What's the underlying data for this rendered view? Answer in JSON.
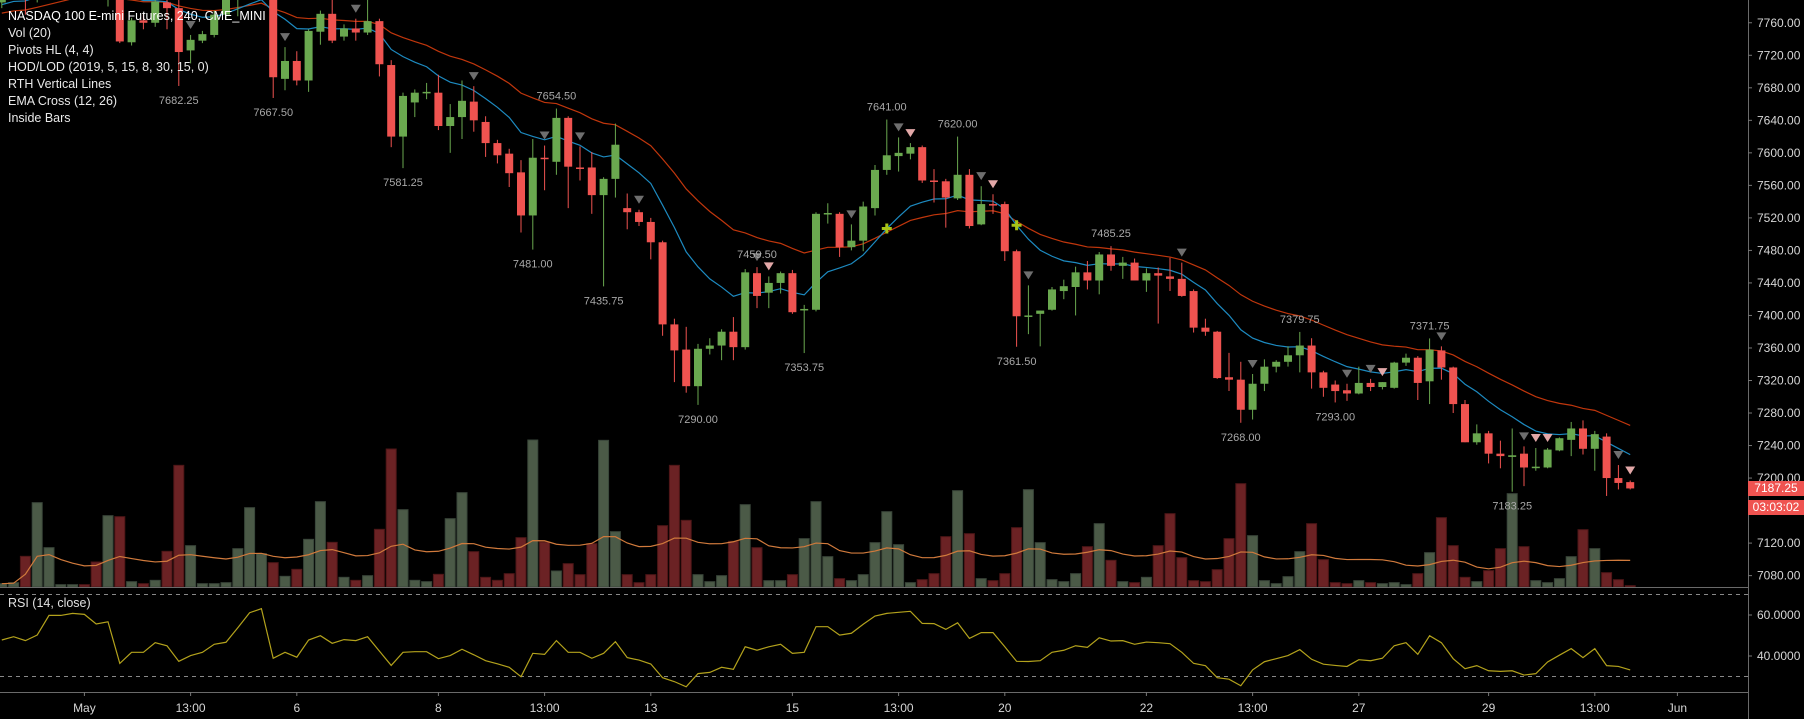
{
  "legend": {
    "title": "NASDAQ 100 E-mini Futures, 240, CME_MINI",
    "indicators": [
      "Vol (20)",
      "Pivots HL (4, 4)",
      "HOD/LOD (2019, 5, 15, 8, 30, 15, 0)",
      "RTH Vertical Lines",
      "EMA Cross (12, 26)",
      "Inside Bars"
    ]
  },
  "rsi_legend": "RSI (14, close)",
  "colors": {
    "background": "#000000",
    "up": "#6aa84f",
    "down": "#ef5350",
    "volume_up": "#4b5a47",
    "volume_down": "#6b2224",
    "ema_fast": "#1d8ac0",
    "ema_slow": "#c0360c",
    "volume_ma": "#d07a3c",
    "rsi": "#b3a21c",
    "marker_gray": "#6e6e6e",
    "marker_pink": "#e3a8a8",
    "ema_cross": "#a8c418"
  },
  "chart_data": {
    "type": "candlestick",
    "candles": [
      [
        7785,
        7800,
        7778,
        7795
      ],
      [
        7795,
        7815,
        7788,
        7808
      ],
      [
        7808,
        7812,
        7770,
        7790
      ],
      [
        7790,
        7825,
        7785,
        7820
      ],
      [
        7820,
        7832,
        7805,
        7828
      ],
      [
        7828,
        7835,
        7820,
        7830
      ],
      [
        7830,
        7838,
        7822,
        7834
      ],
      [
        7834,
        7836,
        7815,
        7825
      ],
      [
        7825,
        7828,
        7790,
        7800
      ],
      [
        7792,
        7815,
        7780,
        7810
      ],
      [
        7800,
        7805,
        7735,
        7737
      ],
      [
        7736,
        7766,
        7732,
        7763
      ],
      [
        7763,
        7770,
        7752,
        7760
      ],
      [
        7760,
        7792,
        7755,
        7786
      ],
      [
        7785,
        7795,
        7752,
        7778
      ],
      [
        7778,
        7790,
        7682.25,
        7724
      ],
      [
        7726,
        7745,
        7710,
        7739
      ],
      [
        7738,
        7750,
        7735,
        7746
      ],
      [
        7745,
        7775,
        7742,
        7770
      ],
      [
        7770,
        7800,
        7765,
        7795
      ],
      [
        7795,
        7812,
        7768,
        7808
      ],
      [
        7808,
        7820,
        7795,
        7815
      ],
      [
        7812,
        7825,
        7790,
        7818
      ],
      [
        7815,
        7818,
        7667.5,
        7693
      ],
      [
        7691,
        7730,
        7677,
        7713
      ],
      [
        7713,
        7725,
        7683,
        7689
      ],
      [
        7689,
        7752,
        7675,
        7750
      ],
      [
        7749,
        7775,
        7733,
        7771
      ],
      [
        7771,
        7790,
        7735,
        7738
      ],
      [
        7743,
        7758,
        7738,
        7753
      ],
      [
        7753,
        7765,
        7738,
        7748
      ],
      [
        7748,
        7790,
        7745,
        7762
      ],
      [
        7762,
        7765,
        7694,
        7709
      ],
      [
        7708,
        7714,
        7607,
        7620
      ],
      [
        7620,
        7674,
        7581.25,
        7670
      ],
      [
        7662,
        7678,
        7644,
        7674
      ],
      [
        7674,
        7686,
        7666,
        7675
      ],
      [
        7674,
        7696,
        7628,
        7633
      ],
      [
        7633,
        7660,
        7600,
        7644
      ],
      [
        7644,
        7689,
        7617,
        7664
      ],
      [
        7663,
        7682,
        7626,
        7640
      ],
      [
        7638,
        7645,
        7595,
        7612
      ],
      [
        7612,
        7616,
        7587,
        7597
      ],
      [
        7599,
        7605,
        7558,
        7575
      ],
      [
        7576,
        7591,
        7502,
        7523
      ],
      [
        7523,
        7617,
        7481,
        7594
      ],
      [
        7594,
        7609,
        7554,
        7593
      ],
      [
        7589,
        7654.5,
        7573,
        7643
      ],
      [
        7643,
        7645,
        7532,
        7583
      ],
      [
        7582,
        7608,
        7566,
        7581
      ],
      [
        7582,
        7601,
        7525,
        7548
      ],
      [
        7548,
        7570,
        7435.75,
        7568
      ],
      [
        7568,
        7636,
        7545,
        7610
      ],
      [
        7532,
        7550,
        7506,
        7527
      ],
      [
        7527,
        7530,
        7510,
        7515
      ],
      [
        7515,
        7520,
        7469,
        7490
      ],
      [
        7490,
        7492,
        7375,
        7389
      ],
      [
        7389,
        7396,
        7318,
        7357
      ],
      [
        7358,
        7386,
        7305,
        7313
      ],
      [
        7313,
        7365,
        7290,
        7359
      ],
      [
        7359,
        7372,
        7352,
        7363
      ],
      [
        7363,
        7383,
        7345,
        7380
      ],
      [
        7380,
        7398,
        7345,
        7361
      ],
      [
        7361,
        7457,
        7358,
        7453
      ],
      [
        7452,
        7459.5,
        7409,
        7424
      ],
      [
        7428,
        7448,
        7409,
        7440
      ],
      [
        7440,
        7454,
        7427,
        7452
      ],
      [
        7452,
        7456,
        7402,
        7404
      ],
      [
        7407,
        7413,
        7353.75,
        7408
      ],
      [
        7407,
        7527,
        7405,
        7525
      ],
      [
        7525,
        7538,
        7513,
        7526
      ],
      [
        7525,
        7527,
        7472,
        7484
      ],
      [
        7484,
        7512,
        7480,
        7492
      ],
      [
        7492,
        7540,
        7479,
        7534
      ],
      [
        7532,
        7585,
        7523,
        7579
      ],
      [
        7579,
        7641,
        7573,
        7597
      ],
      [
        7596,
        7619,
        7577,
        7600
      ],
      [
        7599,
        7612,
        7592,
        7607
      ],
      [
        7607,
        7609,
        7563,
        7566
      ],
      [
        7566,
        7580,
        7539,
        7565
      ],
      [
        7565,
        7568,
        7508,
        7545
      ],
      [
        7544,
        7620,
        7542,
        7573
      ],
      [
        7573,
        7580,
        7507,
        7510
      ],
      [
        7512,
        7559,
        7511,
        7537
      ],
      [
        7537,
        7549,
        7525,
        7536
      ],
      [
        7537,
        7540,
        7467,
        7479
      ],
      [
        7479,
        7481,
        7361.5,
        7399
      ],
      [
        7399,
        7437,
        7377,
        7400
      ],
      [
        7402,
        7406,
        7362,
        7406
      ],
      [
        7407,
        7435,
        7406,
        7432
      ],
      [
        7430,
        7444,
        7420,
        7436
      ],
      [
        7435,
        7460,
        7400,
        7453
      ],
      [
        7453,
        7467,
        7432,
        7443
      ],
      [
        7443,
        7478,
        7426,
        7475
      ],
      [
        7475,
        7485.25,
        7455,
        7461
      ],
      [
        7461,
        7472,
        7445,
        7465
      ],
      [
        7465,
        7470,
        7443,
        7443
      ],
      [
        7443,
        7458,
        7429,
        7452
      ],
      [
        7452,
        7459,
        7390,
        7449
      ],
      [
        7448,
        7471,
        7430,
        7445
      ],
      [
        7445,
        7465,
        7423,
        7424
      ],
      [
        7430,
        7432,
        7379,
        7385
      ],
      [
        7385,
        7396,
        7375,
        7380
      ],
      [
        7380,
        7381,
        7322,
        7323
      ],
      [
        7324,
        7354,
        7307,
        7321
      ],
      [
        7321,
        7343,
        7268,
        7284
      ],
      [
        7284,
        7328,
        7272,
        7316
      ],
      [
        7316,
        7346,
        7307,
        7337
      ],
      [
        7337,
        7345,
        7330,
        7343
      ],
      [
        7343,
        7362,
        7337,
        7351
      ],
      [
        7351,
        7379.75,
        7330,
        7363
      ],
      [
        7363,
        7372,
        7310,
        7330
      ],
      [
        7330,
        7332,
        7300,
        7311
      ],
      [
        7315,
        7320,
        7293,
        7307
      ],
      [
        7308,
        7316,
        7295,
        7304
      ],
      [
        7304,
        7337,
        7303,
        7317
      ],
      [
        7317,
        7322,
        7307,
        7312
      ],
      [
        7312,
        7318,
        7309,
        7318
      ],
      [
        7311,
        7343,
        7310,
        7342
      ],
      [
        7342,
        7353,
        7338,
        7348
      ],
      [
        7348,
        7350,
        7296,
        7317
      ],
      [
        7319,
        7371.75,
        7291,
        7358
      ],
      [
        7357,
        7362,
        7321,
        7336
      ],
      [
        7336,
        7337,
        7280,
        7291
      ],
      [
        7291,
        7296,
        7244,
        7244
      ],
      [
        7244,
        7266,
        7241,
        7255
      ],
      [
        7255,
        7258,
        7218,
        7230
      ],
      [
        7230,
        7246,
        7212,
        7227
      ],
      [
        7226,
        7261,
        7183.25,
        7228
      ],
      [
        7230,
        7239,
        7190,
        7213
      ],
      [
        7213,
        7237,
        7209,
        7214
      ],
      [
        7213,
        7237,
        7212,
        7235
      ],
      [
        7234,
        7250,
        7233,
        7249
      ],
      [
        7247,
        7269,
        7227,
        7261
      ],
      [
        7261,
        7271,
        7229,
        7236
      ],
      [
        7236,
        7258,
        7209,
        7254
      ],
      [
        7251,
        7255,
        7178,
        7200
      ],
      [
        7200,
        7216,
        7186,
        7194
      ],
      [
        7195,
        7197,
        7186,
        7187.25
      ]
    ],
    "volume": [
      10,
      13,
      92,
      253,
      118,
      7,
      7,
      7,
      75,
      214,
      211,
      16,
      10,
      20,
      107,
      365,
      124,
      10,
      10,
      13,
      115,
      238,
      100,
      73,
      32,
      53,
      143,
      256,
      134,
      29,
      20,
      34,
      173,
      414,
      232,
      20,
      16,
      38,
      205,
      283,
      106,
      29,
      20,
      40,
      148,
      441,
      135,
      48,
      70,
      37,
      130,
      440,
      166,
      37,
      13,
      37,
      184,
      365,
      200,
      37,
      16,
      34,
      137,
      247,
      118,
      19,
      19,
      37,
      145,
      256,
      91,
      25,
      19,
      37,
      133,
      226,
      127,
      13,
      22,
      40,
      151,
      289,
      160,
      25,
      19,
      40,
      178,
      292,
      133,
      22,
      16,
      40,
      121,
      190,
      80,
      16,
      13,
      29,
      124,
      220,
      88,
      19,
      16,
      52,
      145,
      310,
      154,
      19,
      10,
      31,
      106,
      190,
      82,
      13,
      10,
      19,
      13,
      10,
      13,
      7,
      40,
      103,
      208,
      124,
      29,
      16,
      49,
      115,
      280,
      121,
      19,
      13,
      25,
      91,
      172,
      115,
      43,
      22,
      4
    ],
    "rsi": [
      47.8,
      49.4,
      47.5,
      50.2,
      59.8,
      59.8,
      60.8,
      60.3,
      55.6,
      56.7,
      36.4,
      41.8,
      41.8,
      46.5,
      45.0,
      37.4,
      40.2,
      41.8,
      45.7,
      46.7,
      53.8,
      61.1,
      63.1,
      38.9,
      41.8,
      39.4,
      47.8,
      49.9,
      46.2,
      48.0,
      47.5,
      49.4,
      42.4,
      35.4,
      41.8,
      42.1,
      42.1,
      38.7,
      40.2,
      43.3,
      40.6,
      37.7,
      36.2,
      34.5,
      29.9,
      41.3,
      40.8,
      47.5,
      41.8,
      41.8,
      38.9,
      41.3,
      47.0,
      39.2,
      38.0,
      36.1,
      29.4,
      27.5,
      25.0,
      31.4,
      32.0,
      34.5,
      33.5,
      44.5,
      42.8,
      44.5,
      45.7,
      41.3,
      41.8,
      54.3,
      54.3,
      50.2,
      51.1,
      55.5,
      59.5,
      60.8,
      61.3,
      61.8,
      55.9,
      55.8,
      53.0,
      56.2,
      48.6,
      51.4,
      51.4,
      44.5,
      37.4,
      37.3,
      37.7,
      41.8,
      42.8,
      45.0,
      44.2,
      48.9,
      47.3,
      47.5,
      45.7,
      46.8,
      46.5,
      46.0,
      41.8,
      36.4,
      35.3,
      29.4,
      28.7,
      25.5,
      33.2,
      37.2,
      38.7,
      40.2,
      43.1,
      38.4,
      36.0,
      35.4,
      34.9,
      38.2,
      37.7,
      38.9,
      45.0,
      46.5,
      40.8,
      49.9,
      46.5,
      38.7,
      33.8,
      35.3,
      32.8,
      32.5,
      32.8,
      30.7,
      31.4,
      37.1,
      40.4,
      43.6,
      39.2,
      43.6,
      35.3,
      34.9,
      33.2
    ],
    "ema_periods": [
      12,
      26
    ],
    "volume_ma_period": 20,
    "price_axis": {
      "range": [
        7066,
        7788
      ],
      "ticks": [
        "7760.00",
        "7720.00",
        "7680.00",
        "7640.00",
        "7600.00",
        "7560.00",
        "7520.00",
        "7480.00",
        "7440.00",
        "7400.00",
        "7360.00",
        "7320.00",
        "7280.00",
        "7240.00",
        "7200.00",
        "7120.00",
        "7080.00"
      ]
    },
    "rsi_axis": {
      "ticks": [
        "60.0000",
        "40.0000"
      ],
      "bands": [
        70,
        30
      ]
    },
    "time_axis": [
      {
        "label": "May",
        "bar": 7
      },
      {
        "label": "13:00",
        "bar": 16
      },
      {
        "label": "6",
        "bar": 25
      },
      {
        "label": "8",
        "bar": 37
      },
      {
        "label": "13:00",
        "bar": 46
      },
      {
        "label": "13",
        "bar": 55
      },
      {
        "label": "15",
        "bar": 67
      },
      {
        "label": "13:00",
        "bar": 76
      },
      {
        "label": "20",
        "bar": 85
      },
      {
        "label": "22",
        "bar": 97
      },
      {
        "label": "13:00",
        "bar": 106
      },
      {
        "label": "27",
        "bar": 115
      },
      {
        "label": "29",
        "bar": 126
      },
      {
        "label": "13:00",
        "bar": 135
      },
      {
        "label": "Jun",
        "bar": 142
      }
    ],
    "pivots": [
      {
        "bar": 15,
        "type": "low",
        "label": "7682.25"
      },
      {
        "bar": 23,
        "type": "low",
        "label": "7667.50"
      },
      {
        "bar": 34,
        "type": "low",
        "label": "7581.25"
      },
      {
        "bar": 47,
        "type": "high",
        "label": "7654.50"
      },
      {
        "bar": 45,
        "type": "low",
        "label": "7481.00"
      },
      {
        "bar": 51,
        "type": "low",
        "label": "7435.75"
      },
      {
        "bar": 59,
        "type": "low",
        "label": "7290.00"
      },
      {
        "bar": 64,
        "type": "high",
        "label": "7459.50"
      },
      {
        "bar": 68,
        "type": "low",
        "label": "7353.75"
      },
      {
        "bar": 75,
        "type": "high",
        "label": "7641.00"
      },
      {
        "bar": 81,
        "type": "high",
        "label": "7620.00"
      },
      {
        "bar": 86,
        "type": "low",
        "label": "7361.50"
      },
      {
        "bar": 94,
        "type": "high",
        "label": "7485.25"
      },
      {
        "bar": 105,
        "type": "low",
        "label": "7268.00"
      },
      {
        "bar": 110,
        "type": "high",
        "label": "7379.75"
      },
      {
        "bar": 113,
        "type": "low",
        "label": "7293.00"
      },
      {
        "bar": 121,
        "type": "high",
        "label": "7371.75"
      },
      {
        "bar": 128,
        "type": "low",
        "label": "7183.25"
      }
    ],
    "inside_bar_markers": {
      "gray": [
        16,
        24,
        30,
        40,
        46,
        49,
        54,
        64,
        72,
        76,
        83,
        87,
        100,
        106,
        114,
        116,
        122,
        129,
        137
      ],
      "pink": [
        65,
        77,
        84,
        117,
        130,
        131,
        138
      ]
    },
    "ema_cross": [
      {
        "bar": 75,
        "price": 7507
      },
      {
        "bar": 86,
        "price": 7511
      }
    ],
    "last_price": "7187.25",
    "countdown": "03:03:02"
  }
}
